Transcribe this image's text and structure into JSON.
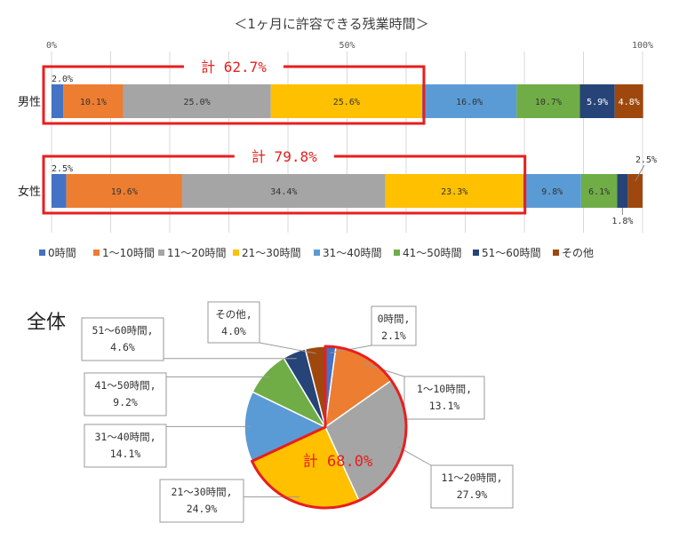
{
  "chart_data": [
    {
      "type": "bar",
      "stacked": "horizontal-100",
      "title": "＜1ヶ月に許容できる残業時間＞",
      "x_ticks": [
        "0%",
        "50%",
        "100%"
      ],
      "xlim": [
        0,
        100
      ],
      "grid": true,
      "legend_position": "bottom",
      "categories": [
        "男性",
        "女性"
      ],
      "series": [
        {
          "name": "0時間",
          "color": "#4472C4",
          "values": [
            2.0,
            2.5
          ],
          "labels": [
            "2.0%",
            "2.5%"
          ]
        },
        {
          "name": "1～10時間",
          "color": "#ED7D31",
          "values": [
            10.1,
            19.6
          ],
          "labels": [
            "10.1%",
            "19.6%"
          ]
        },
        {
          "name": "11～20時間",
          "color": "#A5A5A5",
          "values": [
            25.0,
            34.4
          ],
          "labels": [
            "25.0%",
            "34.4%"
          ]
        },
        {
          "name": "21～30時間",
          "color": "#FFC000",
          "values": [
            25.6,
            23.3
          ],
          "labels": [
            "25.6%",
            "23.3%"
          ]
        },
        {
          "name": "31～40時間",
          "color": "#5B9BD5",
          "values": [
            16.0,
            9.8
          ],
          "labels": [
            "16.0%",
            "9.8%"
          ]
        },
        {
          "name": "41～50時間",
          "color": "#70AD47",
          "values": [
            10.7,
            6.1
          ],
          "labels": [
            "10.7%",
            "6.1%"
          ]
        },
        {
          "name": "51～60時間",
          "color": "#264478",
          "values": [
            5.9,
            1.8
          ],
          "labels": [
            "5.9%",
            "1.8%"
          ]
        },
        {
          "name": "その他",
          "color": "#9E480E",
          "values": [
            4.8,
            2.5
          ],
          "labels": [
            "4.8%",
            "2.5%"
          ]
        }
      ],
      "annotations": [
        {
          "text": "計 62.7%",
          "category": "男性",
          "from_series": 0,
          "to_series": 3,
          "total": 62.7
        },
        {
          "text": "計 79.8%",
          "category": "女性",
          "from_series": 0,
          "to_series": 3,
          "total": 79.8
        }
      ]
    },
    {
      "type": "pie",
      "title": "全体",
      "slices": [
        {
          "name": "0時間",
          "value": 2.1,
          "label": "0時間,\n2.1%",
          "color": "#4472C4"
        },
        {
          "name": "1～10時間",
          "value": 13.1,
          "label": "1～10時間,\n13.1%",
          "color": "#ED7D31"
        },
        {
          "name": "11～20時間",
          "value": 27.9,
          "label": "11～20時間,\n27.9%",
          "color": "#A5A5A5"
        },
        {
          "name": "21～30時間",
          "value": 24.9,
          "label": "21～30時間,\n24.9%",
          "color": "#FFC000"
        },
        {
          "name": "31～40時間",
          "value": 14.1,
          "label": "31～40時間,\n14.1%",
          "color": "#5B9BD5"
        },
        {
          "name": "41～50時間",
          "value": 9.2,
          "label": "41～50時間,\n9.2%",
          "color": "#70AD47"
        },
        {
          "name": "51～60時間",
          "value": 4.6,
          "label": "51～60時間,\n4.6%",
          "color": "#264478"
        },
        {
          "name": "その他",
          "value": 4.0,
          "label": "その他,\n4.0%",
          "color": "#9E480E"
        }
      ],
      "annotations": [
        {
          "text": "計 68.0%",
          "from_slice": 0,
          "to_slice": 3,
          "total": 68.0
        }
      ]
    }
  ],
  "colors": {
    "highlight": "#E81E1E",
    "grid": "#D9D9D9",
    "text": "#404040"
  }
}
